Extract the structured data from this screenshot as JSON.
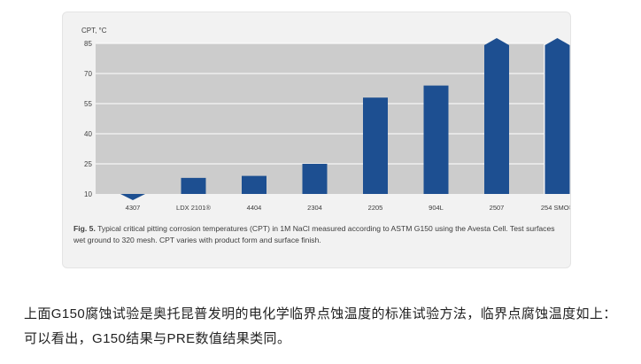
{
  "colors": {
    "bar": "#1d4f91",
    "plot_bg": "#cccccc",
    "gridline": "#ffffff",
    "card_bg": "#f2f2f2"
  },
  "chart_data": {
    "type": "bar",
    "title": "",
    "ylabel": "CPT, °C",
    "xlabel": "",
    "ylim": [
      10,
      85
    ],
    "yticks": [
      10,
      25,
      40,
      55,
      70,
      85
    ],
    "categories": [
      "4307",
      "LDX 2101®",
      "4404",
      "2304",
      "2205",
      "904L",
      "2507",
      "254 SMO®"
    ],
    "values": [
      8,
      18,
      19,
      25,
      58,
      64,
      85,
      85
    ],
    "marker": [
      "below",
      "none",
      "none",
      "none",
      "none",
      "none",
      "above",
      "above"
    ],
    "grid": true
  },
  "caption": {
    "label": "Fig. 5.",
    "text": "Typical critical pitting corrosion temperatures (CPT) in 1M NaCl measured according to ASTM G150 using the Avesta Cell. Test surfaces wet ground to 320 mesh. CPT varies with product form and surface finish."
  },
  "article": {
    "text": "上面G150腐蚀试验是奥托昆普发明的电化学临界点蚀温度的标准试验方法，临界点腐蚀温度如上：可以看出，G150结果与PRE数值结果类同。"
  }
}
